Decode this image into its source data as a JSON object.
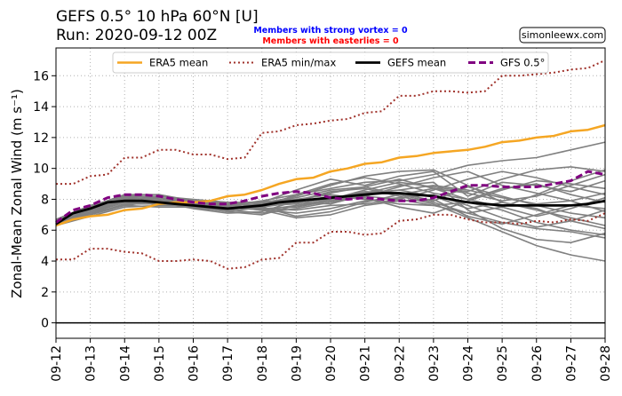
{
  "header": {
    "title_line1": "GEFS 0.5°  10 hPa 60°N [U]",
    "title_line2": "Run: 2020-09-12 00Z",
    "note_strong_vortex": "Members with strong vortex = 0",
    "note_easterlies": "Members with easterlies = 0",
    "credit": "simonleewx.com"
  },
  "colors": {
    "strong_vortex_note": "#0000ff",
    "easterlies_note": "#ff0000",
    "era5_mean": "#f5a623",
    "era5_minmax": "#a0322b",
    "gefs_mean": "#000000",
    "gfs": "#800080",
    "members": "#808080",
    "zero_line": "#000000"
  },
  "chart_data": {
    "type": "line",
    "title": "GEFS 0.5°  10 hPa 60°N [U]",
    "ylabel": "Zonal-Mean Zonal Wind (m s⁻¹)",
    "xlabel": "",
    "x_start": "2020-09-12",
    "x_ticks": [
      "09-12",
      "09-13",
      "09-14",
      "09-15",
      "09-16",
      "09-17",
      "09-18",
      "09-19",
      "09-20",
      "09-21",
      "09-22",
      "09-23",
      "09-24",
      "09-25",
      "09-26",
      "09-27",
      "09-28"
    ],
    "xlim": [
      0,
      16
    ],
    "ylim": [
      -1,
      17.8
    ],
    "y_ticks": [
      0,
      2,
      4,
      6,
      8,
      10,
      12,
      14,
      16
    ],
    "grid": true,
    "legend_position": "top-center",
    "zero_line": 0,
    "series": [
      {
        "name": "ERA5 mean",
        "style": "solid",
        "points": [
          [
            0,
            6.3
          ],
          [
            0.5,
            6.7
          ],
          [
            1,
            6.9
          ],
          [
            1.5,
            7.0
          ],
          [
            2,
            7.3
          ],
          [
            2.5,
            7.4
          ],
          [
            3,
            7.7
          ],
          [
            3.5,
            7.8
          ],
          [
            4,
            7.8
          ],
          [
            4.5,
            7.9
          ],
          [
            5,
            8.2
          ],
          [
            5.5,
            8.3
          ],
          [
            6,
            8.6
          ],
          [
            6.5,
            9.0
          ],
          [
            7,
            9.3
          ],
          [
            7.5,
            9.4
          ],
          [
            8,
            9.8
          ],
          [
            8.5,
            10.0
          ],
          [
            9,
            10.3
          ],
          [
            9.5,
            10.4
          ],
          [
            10,
            10.7
          ],
          [
            10.5,
            10.8
          ],
          [
            11,
            11.0
          ],
          [
            11.5,
            11.1
          ],
          [
            12,
            11.2
          ],
          [
            12.5,
            11.4
          ],
          [
            13,
            11.7
          ],
          [
            13.5,
            11.8
          ],
          [
            14,
            12.0
          ],
          [
            14.5,
            12.1
          ],
          [
            15,
            12.4
          ],
          [
            15.5,
            12.5
          ],
          [
            16,
            12.8
          ]
        ]
      },
      {
        "name": "ERA5 min/max",
        "style": "dotted",
        "lines": [
          [
            [
              0,
              9.0
            ],
            [
              0.5,
              9.0
            ],
            [
              1,
              9.5
            ],
            [
              1.5,
              9.6
            ],
            [
              2,
              10.7
            ],
            [
              2.5,
              10.7
            ],
            [
              3,
              11.2
            ],
            [
              3.5,
              11.2
            ],
            [
              4,
              10.9
            ],
            [
              4.5,
              10.9
            ],
            [
              5,
              10.6
            ],
            [
              5.5,
              10.7
            ],
            [
              6,
              12.3
            ],
            [
              6.5,
              12.4
            ],
            [
              7,
              12.8
            ],
            [
              7.5,
              12.9
            ],
            [
              8,
              13.1
            ],
            [
              8.5,
              13.2
            ],
            [
              9,
              13.6
            ],
            [
              9.5,
              13.7
            ],
            [
              10,
              14.7
            ],
            [
              10.5,
              14.7
            ],
            [
              11,
              15.0
            ],
            [
              11.5,
              15.0
            ],
            [
              12,
              14.9
            ],
            [
              12.5,
              15.0
            ],
            [
              13,
              16.0
            ],
            [
              13.5,
              16.0
            ],
            [
              14,
              16.1
            ],
            [
              14.5,
              16.2
            ],
            [
              15,
              16.4
            ],
            [
              15.5,
              16.5
            ],
            [
              16,
              17.0
            ]
          ],
          [
            [
              0,
              4.1
            ],
            [
              0.5,
              4.1
            ],
            [
              1,
              4.8
            ],
            [
              1.5,
              4.8
            ],
            [
              2,
              4.6
            ],
            [
              2.5,
              4.5
            ],
            [
              3,
              4.0
            ],
            [
              3.5,
              4.0
            ],
            [
              4,
              4.1
            ],
            [
              4.5,
              4.0
            ],
            [
              5,
              3.5
            ],
            [
              5.5,
              3.6
            ],
            [
              6,
              4.1
            ],
            [
              6.5,
              4.2
            ],
            [
              7,
              5.2
            ],
            [
              7.5,
              5.2
            ],
            [
              8,
              5.9
            ],
            [
              8.5,
              5.9
            ],
            [
              9,
              5.7
            ],
            [
              9.5,
              5.8
            ],
            [
              10,
              6.6
            ],
            [
              10.5,
              6.7
            ],
            [
              11,
              7.0
            ],
            [
              11.5,
              7.0
            ],
            [
              12,
              6.7
            ],
            [
              12.5,
              6.5
            ],
            [
              13,
              6.5
            ],
            [
              13.5,
              6.4
            ],
            [
              14,
              6.6
            ],
            [
              14.5,
              6.5
            ],
            [
              15,
              6.7
            ],
            [
              15.5,
              6.6
            ],
            [
              16,
              7.1
            ]
          ]
        ]
      },
      {
        "name": "GEFS mean",
        "style": "solid-thick",
        "points": [
          [
            0,
            6.4
          ],
          [
            0.5,
            7.1
          ],
          [
            1,
            7.4
          ],
          [
            1.5,
            7.8
          ],
          [
            2,
            7.9
          ],
          [
            2.5,
            7.9
          ],
          [
            3,
            7.8
          ],
          [
            3.5,
            7.7
          ],
          [
            4,
            7.6
          ],
          [
            4.5,
            7.5
          ],
          [
            5,
            7.4
          ],
          [
            5.5,
            7.5
          ],
          [
            6,
            7.6
          ],
          [
            6.5,
            7.8
          ],
          [
            7,
            7.9
          ],
          [
            7.5,
            8.0
          ],
          [
            8,
            8.1
          ],
          [
            8.5,
            8.2
          ],
          [
            9,
            8.3
          ],
          [
            9.5,
            8.4
          ],
          [
            10,
            8.4
          ],
          [
            10.5,
            8.3
          ],
          [
            11,
            8.2
          ],
          [
            11.5,
            8.0
          ],
          [
            12,
            7.8
          ],
          [
            12.5,
            7.7
          ],
          [
            13,
            7.6
          ],
          [
            13.5,
            7.6
          ],
          [
            14,
            7.6
          ],
          [
            14.5,
            7.6
          ],
          [
            15,
            7.6
          ],
          [
            15.5,
            7.7
          ],
          [
            16,
            7.9
          ]
        ]
      },
      {
        "name": "GFS 0.5°",
        "style": "dashed",
        "points": [
          [
            0,
            6.5
          ],
          [
            0.5,
            7.3
          ],
          [
            1,
            7.6
          ],
          [
            1.5,
            8.1
          ],
          [
            2,
            8.3
          ],
          [
            2.5,
            8.3
          ],
          [
            3,
            8.2
          ],
          [
            3.5,
            8.0
          ],
          [
            4,
            7.8
          ],
          [
            4.5,
            7.7
          ],
          [
            5,
            7.7
          ],
          [
            5.5,
            7.9
          ],
          [
            6,
            8.2
          ],
          [
            6.5,
            8.4
          ],
          [
            7,
            8.5
          ],
          [
            7.5,
            8.4
          ],
          [
            8,
            8.1
          ],
          [
            8.5,
            8.0
          ],
          [
            9,
            8.1
          ],
          [
            9.5,
            8.0
          ],
          [
            10,
            7.9
          ],
          [
            10.5,
            7.9
          ],
          [
            11,
            8.1
          ],
          [
            11.5,
            8.5
          ],
          [
            12,
            8.9
          ],
          [
            12.5,
            8.9
          ],
          [
            13,
            8.8
          ],
          [
            13.5,
            8.8
          ],
          [
            14,
            8.8
          ],
          [
            14.5,
            9.0
          ],
          [
            15,
            9.2
          ],
          [
            15.5,
            9.8
          ],
          [
            16,
            9.6
          ]
        ]
      }
    ],
    "member_x": [
      0,
      1,
      2,
      3,
      4,
      5,
      6,
      7,
      8,
      9,
      10,
      11,
      12,
      13,
      14,
      15,
      16
    ],
    "members": [
      [
        6.4,
        7.2,
        7.9,
        7.8,
        7.5,
        7.3,
        7.8,
        8.6,
        9.3,
        8.9,
        9.5,
        9.8,
        8.2,
        9.1,
        8.9,
        8.5,
        9.2
      ],
      [
        6.6,
        7.5,
        8.3,
        8.0,
        7.4,
        7.1,
        7.2,
        7.9,
        8.4,
        8.8,
        9.3,
        8.7,
        8.0,
        7.5,
        6.9,
        7.4,
        8.1
      ],
      [
        6.3,
        7.0,
        7.6,
        7.9,
        7.8,
        7.6,
        7.9,
        8.3,
        8.7,
        9.1,
        9.2,
        9.6,
        10.2,
        10.5,
        10.7,
        11.2,
        11.7
      ],
      [
        6.5,
        7.3,
        8.0,
        8.1,
        7.9,
        7.7,
        7.8,
        8.1,
        8.6,
        8.8,
        8.3,
        7.8,
        7.1,
        6.5,
        6.1,
        5.9,
        5.5
      ],
      [
        6.7,
        7.6,
        8.2,
        8.1,
        7.7,
        7.2,
        7.0,
        7.6,
        7.9,
        8.2,
        8.8,
        9.4,
        9.8,
        8.9,
        8.4,
        7.9,
        7.2
      ],
      [
        6.4,
        7.1,
        7.8,
        7.7,
        7.6,
        7.5,
        7.3,
        7.1,
        7.4,
        7.9,
        8.1,
        8.3,
        7.6,
        6.8,
        6.2,
        6.6,
        7.3
      ],
      [
        6.6,
        7.4,
        8.1,
        8.2,
        8.0,
        7.8,
        7.5,
        6.9,
        7.2,
        7.8,
        8.3,
        8.7,
        8.4,
        7.9,
        8.2,
        8.9,
        9.6
      ],
      [
        6.5,
        7.2,
        7.9,
        7.9,
        7.7,
        7.6,
        7.7,
        7.8,
        8.2,
        8.1,
        7.5,
        7.1,
        7.9,
        8.6,
        9.2,
        9.0,
        8.7
      ],
      [
        6.3,
        6.9,
        7.5,
        7.6,
        7.6,
        7.5,
        7.4,
        7.5,
        7.9,
        8.4,
        8.9,
        9.1,
        7.3,
        6.1,
        5.4,
        5.2,
        5.8
      ],
      [
        6.7,
        7.5,
        8.2,
        8.3,
        7.9,
        7.6,
        7.4,
        7.3,
        7.6,
        7.7,
        8.0,
        8.6,
        9.3,
        9.8,
        9.4,
        8.8,
        8.3
      ],
      [
        6.5,
        7.3,
        8.0,
        7.8,
        7.4,
        7.3,
        7.6,
        7.9,
        8.0,
        8.5,
        8.4,
        7.9,
        8.8,
        8.2,
        7.6,
        7.1,
        6.8
      ],
      [
        6.4,
        7.0,
        7.7,
        7.8,
        7.8,
        7.7,
        7.3,
        6.8,
        7.0,
        7.6,
        7.9,
        8.0,
        6.9,
        6.4,
        7.0,
        7.6,
        7.4
      ],
      [
        6.6,
        7.4,
        8.1,
        8.0,
        7.6,
        7.4,
        7.7,
        8.2,
        8.9,
        9.5,
        9.8,
        9.9,
        8.9,
        7.8,
        7.3,
        6.8,
        6.3
      ],
      [
        6.5,
        7.2,
        7.8,
        7.9,
        7.9,
        7.8,
        7.8,
        8.0,
        8.3,
        8.0,
        7.7,
        7.6,
        7.1,
        7.5,
        8.3,
        9.2,
        9.9
      ],
      [
        6.4,
        7.1,
        7.6,
        7.5,
        7.5,
        7.4,
        7.5,
        7.8,
        7.7,
        8.3,
        8.6,
        8.2,
        7.4,
        7.8,
        7.4,
        6.6,
        6.1
      ],
      [
        6.6,
        7.5,
        8.3,
        8.3,
        7.8,
        7.5,
        7.3,
        7.6,
        8.0,
        8.6,
        9.1,
        8.8,
        8.5,
        9.3,
        9.9,
        10.1,
        9.8
      ],
      [
        6.5,
        7.3,
        7.9,
        8.0,
        7.7,
        7.3,
        7.1,
        7.4,
        7.8,
        8.2,
        8.0,
        7.6,
        7.8,
        7.3,
        6.5,
        6.0,
        5.7
      ],
      [
        6.3,
        7.0,
        7.7,
        7.7,
        7.6,
        7.6,
        7.7,
        7.9,
        8.5,
        8.7,
        8.2,
        7.7,
        6.8,
        5.9,
        5.0,
        4.4,
        4.0
      ],
      [
        6.7,
        7.4,
        8.0,
        8.1,
        7.9,
        7.7,
        7.6,
        7.7,
        8.1,
        8.4,
        8.6,
        8.9,
        8.6,
        8.1,
        7.7,
        7.9,
        8.4
      ],
      [
        6.5,
        7.2,
        7.9,
        7.8,
        7.5,
        7.2,
        7.5,
        8.3,
        9.0,
        9.4,
        9.0,
        8.4,
        8.0,
        8.7,
        9.0,
        8.3,
        7.8
      ]
    ]
  }
}
